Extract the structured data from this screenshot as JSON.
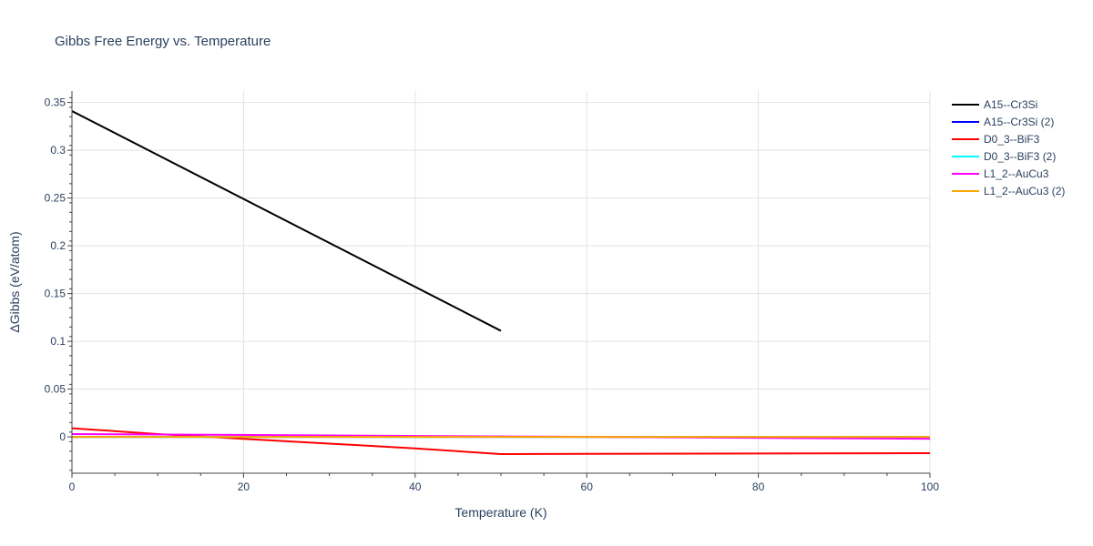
{
  "chart_data": {
    "type": "line",
    "title": "Gibbs Free Energy vs. Temperature",
    "xlabel": "Temperature (K)",
    "ylabel": "ΔGibbs (eV/atom)",
    "xlim": [
      0,
      100
    ],
    "ylim": [
      -0.038,
      0.362
    ],
    "x_ticks": [
      0,
      20,
      40,
      60,
      80,
      100
    ],
    "x_tick_labels": [
      "0",
      "20",
      "40",
      "60",
      "80",
      "100"
    ],
    "y_ticks": [
      0,
      0.05,
      0.1,
      0.15,
      0.2,
      0.25,
      0.3,
      0.35
    ],
    "y_tick_labels": [
      "0",
      "0.05",
      "0.1",
      "0.15",
      "0.2",
      "0.25",
      "0.3",
      "0.35"
    ],
    "grid": true,
    "legend_position": "right",
    "series": [
      {
        "name": "A15--Cr3Si",
        "color": "#000000",
        "x": [
          0,
          50
        ],
        "y": [
          0.341,
          0.111
        ]
      },
      {
        "name": "A15--Cr3Si (2)",
        "color": "#0000ff",
        "x": [
          0,
          100
        ],
        "y": [
          0.0,
          0.0
        ]
      },
      {
        "name": "D0_3--BiF3",
        "color": "#ff0000",
        "x": [
          0,
          10,
          20,
          30,
          40,
          50,
          100
        ],
        "y": [
          0.009,
          0.003,
          -0.002,
          -0.007,
          -0.012,
          -0.018,
          -0.017
        ]
      },
      {
        "name": "D0_3--BiF3 (2)",
        "color": "#00ffff",
        "x": [
          0,
          100
        ],
        "y": [
          0.0,
          0.0
        ]
      },
      {
        "name": "L1_2--AuCu3",
        "color": "#ff00ff",
        "x": [
          0,
          100
        ],
        "y": [
          0.003,
          -0.002
        ]
      },
      {
        "name": "L1_2--AuCu3 (2)",
        "color": "#ffa500",
        "x": [
          0,
          100
        ],
        "y": [
          0.0,
          0.0
        ]
      }
    ]
  }
}
